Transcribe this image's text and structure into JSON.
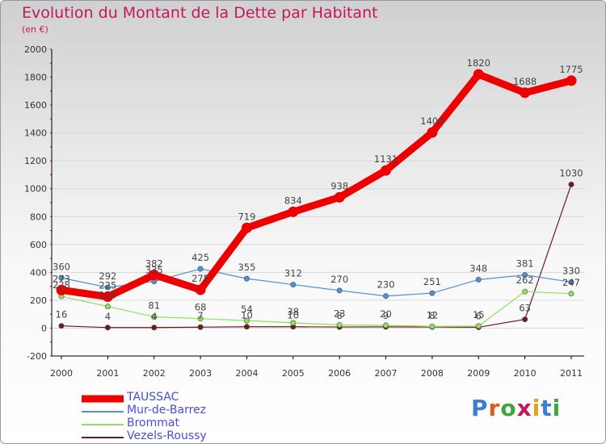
{
  "title": "Evolution du Montant de la Dette par Habitant",
  "subtitle": "(en €)",
  "logo_text": "Proxiti",
  "colors": {
    "title": "#c2185b",
    "grid": "#d8d8d8",
    "axis": "#000000",
    "tick_red": "#cc0000"
  },
  "chart_data": {
    "type": "line",
    "title": "Evolution du Montant de la Dette par Habitant",
    "subtitle": "(en €)",
    "xlabel": "",
    "ylabel": "",
    "categories": [
      "2000",
      "2001",
      "2002",
      "2003",
      "2004",
      "2005",
      "2006",
      "2007",
      "2008",
      "2009",
      "2010",
      "2011"
    ],
    "yticks": [
      "-200",
      "0",
      "200",
      "400",
      "600",
      "800",
      "1000",
      "1200",
      "1400",
      "1600",
      "1800",
      "2000"
    ],
    "ylim": [
      -200,
      2000
    ],
    "grid": "horizontal",
    "legend_position": "bottom-left",
    "series": [
      {
        "name": "TAUSSAC",
        "color": "#ee0000",
        "width": 9,
        "values": [
          273,
          225,
          382,
          275,
          719,
          834,
          938,
          1131,
          1403,
          1820,
          1688,
          1775
        ],
        "labels": [
          "273",
          "225",
          "382",
          "275",
          "719",
          "834",
          "938",
          "1131",
          "1403",
          "1820",
          "1688",
          "1775"
        ]
      },
      {
        "name": "Mur-de-Barrez",
        "color": "#4f90d6",
        "width": 1.2,
        "values": [
          360,
          292,
          335,
          425,
          355,
          312,
          270,
          230,
          251,
          348,
          381,
          330
        ],
        "labels": [
          "360",
          "292",
          "335",
          "425",
          "355",
          "312",
          "270",
          "230",
          "251",
          "348",
          "381",
          "330"
        ]
      },
      {
        "name": "Brommat",
        "color": "#8ee05a",
        "width": 1.2,
        "values": [
          228,
          155,
          81,
          68,
          54,
          38,
          23,
          20,
          12,
          15,
          262,
          247
        ],
        "labels": [
          "228",
          "155",
          "81",
          "68",
          "54",
          "38",
          "23",
          "20",
          "12",
          "15",
          "262",
          "247"
        ]
      },
      {
        "name": "Vezels-Roussy",
        "color": "#6a1c1c",
        "width": 1.2,
        "values": [
          16,
          4,
          4,
          7,
          10,
          10,
          8,
          9,
          8,
          6,
          63,
          1030
        ],
        "labels": [
          "16",
          "4",
          "4",
          "7",
          "10",
          "10",
          "8",
          "9",
          "8",
          "6",
          "63",
          "1030"
        ]
      }
    ]
  }
}
